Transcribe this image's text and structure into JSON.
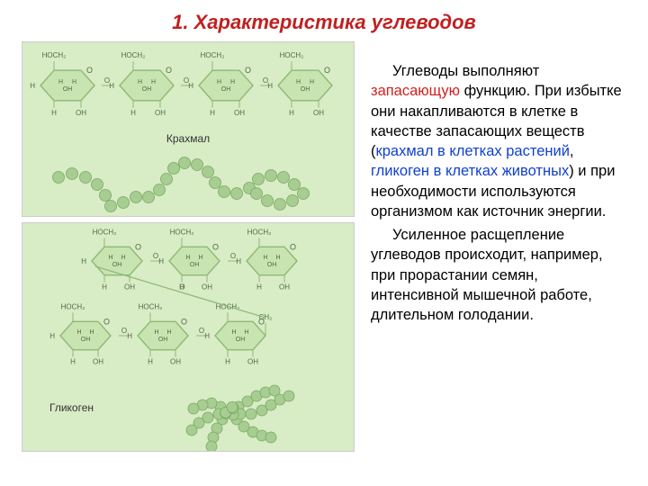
{
  "title": "1. Характеристика углеводов",
  "title_color": "#c02020",
  "labels": {
    "starch": "Крахмал",
    "glycogen": "Гликоген"
  },
  "text": {
    "p1a": "Углеводы выполняют ",
    "p1b": "запасающую",
    "p1c": " функцию. При избытке они накапливаются в клетке в качестве запасающих веществ (",
    "p1d": "крахмал в клетках растений",
    "p1e": ", ",
    "p1f": "гликоген в клетках животных",
    "p1g": ") и при необходимости используются организмом как источник энергии.",
    "p2": "Усиленное расщепление углеводов происходит, например, при прорастании семян, интенсивной мышечной работе, длительном голодании."
  },
  "colors": {
    "panel_bg": "#d8ecc5",
    "ring_fill": "#c8e4b0",
    "ring_stroke": "#8fb877",
    "bead": "#a7cd92",
    "bead_stroke": "#7aa863",
    "atom_text": "#526b4a"
  },
  "chem": {
    "top_label": "HOCH₂",
    "H": "H",
    "O": "O",
    "OH": "OH",
    "CH2": "CH₂"
  }
}
